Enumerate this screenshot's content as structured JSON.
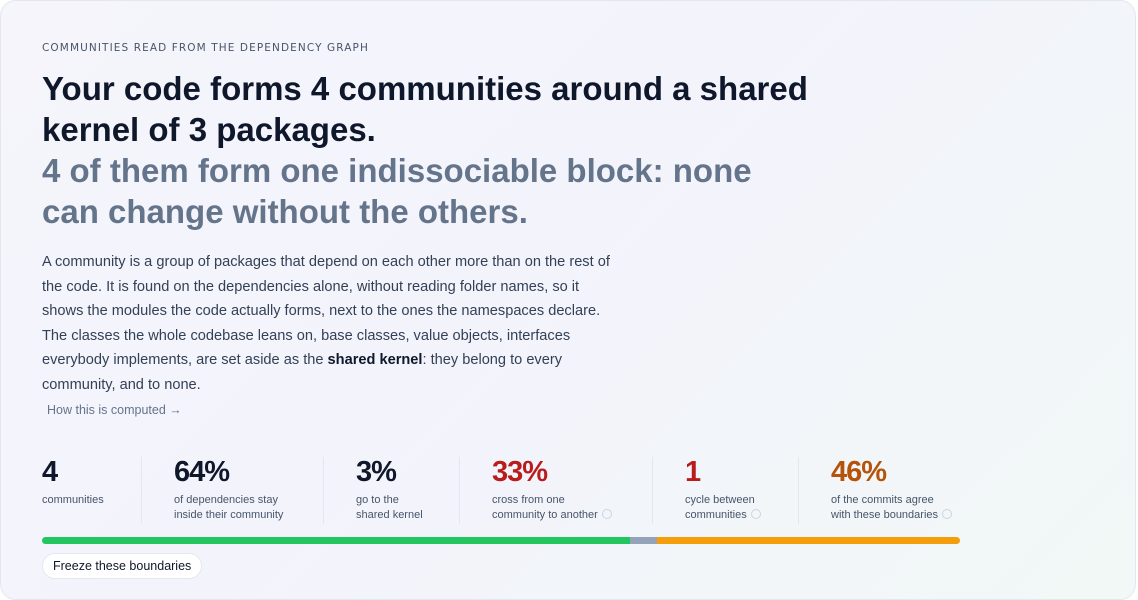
{
  "eyebrow": "COMMUNITIES READ FROM THE DEPENDENCY GRAPH",
  "headline": {
    "main": "Your code forms 4 communities around a shared kernel of 3 packages.",
    "secondary": "4 of them form one indissociable block: none can change without the others."
  },
  "description": {
    "before": "A community is a group of packages that depend on each other more than on the rest of the code. It is found on the dependencies alone, without reading folder names, so it shows the modules the code actually forms, next to the ones the namespaces declare. The classes the whole codebase leans on, base classes, value objects, interfaces everybody implements, are set aside as the ",
    "bold": "shared kernel",
    "after": ": they belong to every community, and to none."
  },
  "link": "How this is computed →",
  "stats": [
    {
      "value": 4,
      "caption": [
        "communities"
      ],
      "color": "#0f172a",
      "info": false
    },
    {
      "value": 64,
      "label": "64%",
      "caption": [
        "of dependencies stay",
        "inside their community"
      ],
      "color": "#0f172a",
      "info": false,
      "bar_color": "#22c55e"
    },
    {
      "value": 3,
      "label": "3%",
      "caption": [
        "go to the",
        "shared kernel"
      ],
      "color": "#0f172a",
      "info": false,
      "bar_color": "#94a3b8"
    },
    {
      "value": 33,
      "label": "33%",
      "caption": [
        "cross from one",
        "community to another"
      ],
      "color": "#b91c1c",
      "info": true,
      "bar_color": "#f59e0b"
    },
    {
      "value": 1,
      "caption": [
        "cycle between",
        "communities"
      ],
      "color": "#b91c1c",
      "info": true
    },
    {
      "value": 46,
      "label": "46%",
      "caption": [
        "of the commits agree",
        "with these boundaries"
      ],
      "color": "#b45309",
      "info": true
    }
  ],
  "button": "Freeze these boundaries"
}
